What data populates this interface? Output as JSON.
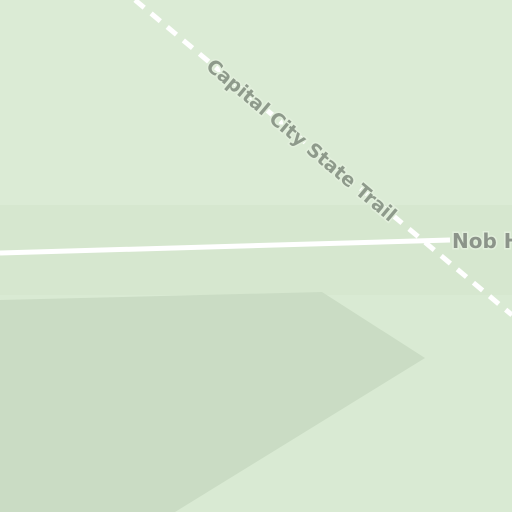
{
  "map": {
    "colors": {
      "park_background": "#d9ead3",
      "park_light": "#dcecd6",
      "park_band": "#d3e5cc",
      "park_dark_area": "#c8dbc2",
      "road": "#ffffff",
      "trail_dash": "#ffffff",
      "label_text": "#8e9a8b"
    },
    "trail": {
      "name": "Capital City State Trail"
    },
    "road": {
      "name": "Nob H"
    }
  }
}
